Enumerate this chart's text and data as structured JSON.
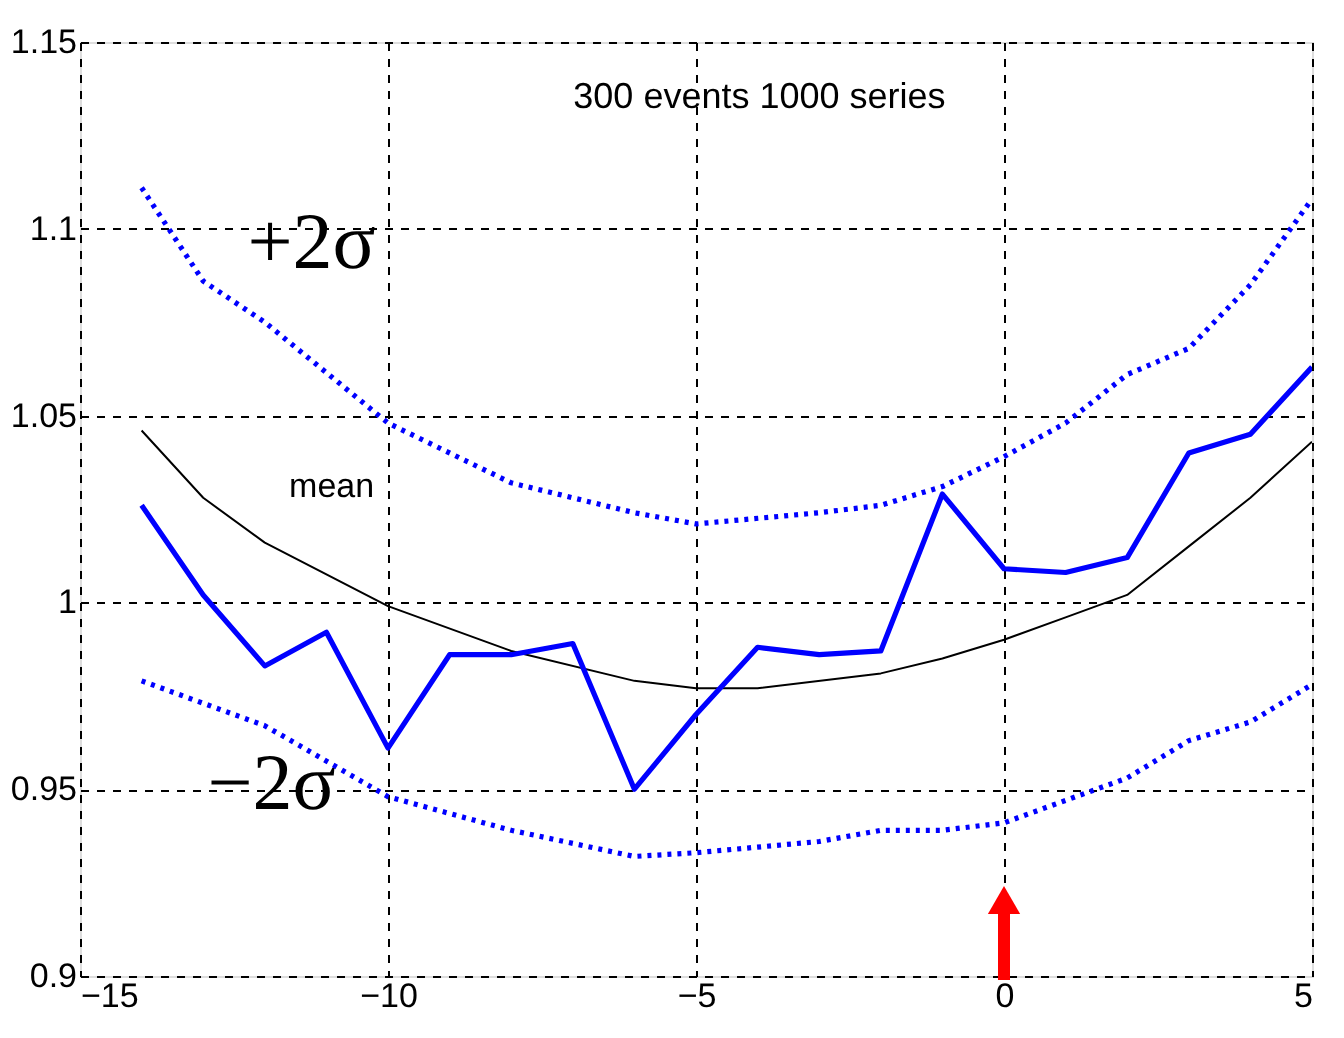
{
  "chart_data": {
    "type": "line",
    "annotations": [
      "300 events 1000 series"
    ],
    "xlim": [
      -15,
      5
    ],
    "xticks": [
      -15,
      -10,
      -5,
      0,
      5
    ],
    "ylim": [
      0.9,
      1.15
    ],
    "yticks": [
      0.9,
      0.95,
      1,
      1.05,
      1.1,
      1.15
    ],
    "grid": true,
    "marker": "none",
    "series": [
      {
        "name": "+2σ",
        "color": "#0000ff",
        "line_style": "dotted",
        "x": [
          -14,
          -13,
          -12,
          -10,
          -8,
          -6,
          -5,
          -3,
          -2,
          -1,
          0,
          1,
          2,
          3,
          4,
          5
        ],
        "values": [
          1.111,
          1.086,
          1.075,
          1.048,
          1.032,
          1.024,
          1.021,
          1.024,
          1.026,
          1.031,
          1.039,
          1.048,
          1.061,
          1.068,
          1.085,
          1.108
        ]
      },
      {
        "name": "mean",
        "color": "#000000",
        "line_style": "solid",
        "x": [
          -14,
          -13,
          -12,
          -10,
          -8,
          -6,
          -5,
          -4,
          -2,
          -1,
          0,
          1,
          2,
          3,
          4,
          5
        ],
        "values": [
          1.046,
          1.028,
          1.016,
          0.999,
          0.987,
          0.979,
          0.977,
          0.977,
          0.981,
          0.985,
          0.99,
          0.996,
          1.002,
          1.015,
          1.028,
          1.043
        ]
      },
      {
        "color": "#0000ff",
        "line_style": "solid",
        "x": [
          -14,
          -13,
          -12,
          -11,
          -10,
          -9,
          -8,
          -7,
          -6,
          -5,
          -4,
          -3,
          -2,
          -1,
          0,
          1,
          2,
          3,
          4,
          5
        ],
        "values": [
          1.026,
          1.002,
          0.983,
          0.992,
          0.961,
          0.986,
          0.986,
          0.989,
          0.95,
          0.97,
          0.988,
          0.986,
          0.987,
          1.029,
          1.009,
          1.008,
          1.012,
          1.04,
          1.045,
          1.063
        ]
      },
      {
        "name": "−2σ",
        "color": "#0000ff",
        "line_style": "dotted",
        "x": [
          -14,
          -13,
          -12,
          -10,
          -8,
          -6,
          -5,
          -3,
          -2,
          -1,
          0,
          1,
          2,
          3,
          4,
          5
        ],
        "values": [
          0.979,
          0.973,
          0.967,
          0.948,
          0.939,
          0.932,
          0.933,
          0.936,
          0.939,
          0.939,
          0.941,
          0.947,
          0.953,
          0.963,
          0.968,
          0.978
        ]
      }
    ]
  }
}
